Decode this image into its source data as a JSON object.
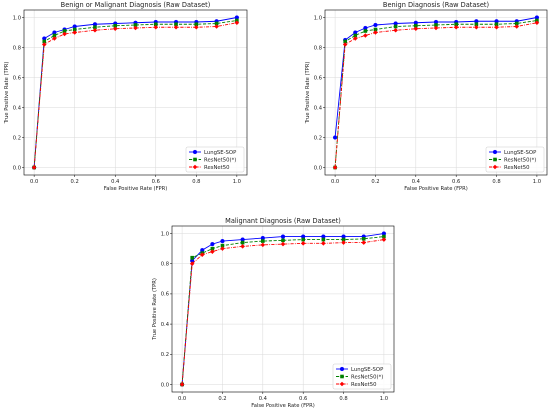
{
  "chart_data": [
    {
      "type": "line",
      "title": "Benign or Malignant Diagnosis (Raw Dataset)",
      "xlabel": "False Positive Rate (FPR)",
      "ylabel": "True Positive Rate (TPR)",
      "xlim": [
        -0.05,
        1.05
      ],
      "ylim": [
        -0.05,
        1.05
      ],
      "xticks": [
        "0.0",
        "0.2",
        "0.4",
        "0.6",
        "0.8",
        "1.0"
      ],
      "yticks": [
        "0.0",
        "0.2",
        "0.4",
        "0.6",
        "0.8",
        "1.0"
      ],
      "grid": true,
      "legend_position": "lower-right",
      "x": [
        0.0,
        0.05,
        0.1,
        0.15,
        0.2,
        0.3,
        0.4,
        0.5,
        0.6,
        0.7,
        0.8,
        0.9,
        1.0
      ],
      "series": [
        {
          "name": "LungSE-SOP",
          "color": "#0000ff",
          "marker": "circle",
          "dash": "solid",
          "values": [
            0.0,
            0.86,
            0.9,
            0.92,
            0.94,
            0.955,
            0.96,
            0.965,
            0.97,
            0.97,
            0.97,
            0.975,
            1.0
          ]
        },
        {
          "name": "ResNet50(*)",
          "color": "#008000",
          "marker": "square",
          "dash": "dashed",
          "values": [
            0.0,
            0.84,
            0.88,
            0.91,
            0.92,
            0.935,
            0.945,
            0.95,
            0.955,
            0.955,
            0.955,
            0.96,
            0.98
          ]
        },
        {
          "name": "ResNet50",
          "color": "#ff0000",
          "marker": "diamond",
          "dash": "dashdot",
          "values": [
            0.0,
            0.82,
            0.86,
            0.89,
            0.9,
            0.915,
            0.925,
            0.93,
            0.935,
            0.935,
            0.935,
            0.94,
            0.965
          ]
        }
      ]
    },
    {
      "type": "line",
      "title": "Benign Diagnosis (Raw Dataset)",
      "xlabel": "False Positive Rate (FPR)",
      "ylabel": "True Positive Rate (TPR)",
      "xlim": [
        -0.05,
        1.05
      ],
      "ylim": [
        -0.05,
        1.05
      ],
      "xticks": [
        "0.0",
        "0.2",
        "0.4",
        "0.6",
        "0.8",
        "1.0"
      ],
      "yticks": [
        "0.0",
        "0.2",
        "0.4",
        "0.6",
        "0.8",
        "1.0"
      ],
      "grid": true,
      "legend_position": "lower-right",
      "x": [
        0.0,
        0.05,
        0.1,
        0.15,
        0.2,
        0.3,
        0.4,
        0.5,
        0.6,
        0.7,
        0.8,
        0.9,
        1.0
      ],
      "series": [
        {
          "name": "LungSE-SOP",
          "color": "#0000ff",
          "marker": "circle",
          "dash": "solid",
          "values": [
            0.2,
            0.85,
            0.9,
            0.93,
            0.95,
            0.96,
            0.965,
            0.97,
            0.97,
            0.975,
            0.975,
            0.975,
            1.0
          ]
        },
        {
          "name": "ResNet50(*)",
          "color": "#008000",
          "marker": "square",
          "dash": "dashed",
          "values": [
            0.0,
            0.84,
            0.88,
            0.91,
            0.92,
            0.94,
            0.945,
            0.95,
            0.955,
            0.955,
            0.955,
            0.96,
            0.98
          ]
        },
        {
          "name": "ResNet50",
          "color": "#ff0000",
          "marker": "diamond",
          "dash": "dashdot",
          "values": [
            0.0,
            0.82,
            0.86,
            0.88,
            0.9,
            0.915,
            0.925,
            0.93,
            0.935,
            0.935,
            0.935,
            0.94,
            0.965
          ]
        }
      ]
    },
    {
      "type": "line",
      "title": "Malignant Diagnosis (Raw Dataset)",
      "xlabel": "False Positive Rate (FPR)",
      "ylabel": "True Positive Rate (TPR)",
      "xlim": [
        -0.05,
        1.05
      ],
      "ylim": [
        -0.05,
        1.05
      ],
      "xticks": [
        "0.0",
        "0.2",
        "0.4",
        "0.6",
        "0.8",
        "1.0"
      ],
      "yticks": [
        "0.0",
        "0.2",
        "0.4",
        "0.6",
        "0.8",
        "1.0"
      ],
      "grid": true,
      "legend_position": "lower-right",
      "x": [
        0.0,
        0.05,
        0.1,
        0.15,
        0.2,
        0.3,
        0.4,
        0.5,
        0.6,
        0.7,
        0.8,
        0.9,
        1.0
      ],
      "series": [
        {
          "name": "LungSE-SOP",
          "color": "#0000ff",
          "marker": "circle",
          "dash": "solid",
          "values": [
            0.0,
            0.82,
            0.89,
            0.93,
            0.95,
            0.96,
            0.97,
            0.98,
            0.98,
            0.98,
            0.98,
            0.98,
            1.0
          ]
        },
        {
          "name": "ResNet50(*)",
          "color": "#008000",
          "marker": "square",
          "dash": "dashed",
          "values": [
            0.0,
            0.84,
            0.87,
            0.9,
            0.92,
            0.94,
            0.95,
            0.955,
            0.96,
            0.96,
            0.96,
            0.965,
            0.98
          ]
        },
        {
          "name": "ResNet50",
          "color": "#ff0000",
          "marker": "diamond",
          "dash": "dashdot",
          "values": [
            0.0,
            0.8,
            0.86,
            0.88,
            0.9,
            0.915,
            0.925,
            0.93,
            0.935,
            0.935,
            0.94,
            0.94,
            0.96
          ]
        }
      ]
    }
  ]
}
